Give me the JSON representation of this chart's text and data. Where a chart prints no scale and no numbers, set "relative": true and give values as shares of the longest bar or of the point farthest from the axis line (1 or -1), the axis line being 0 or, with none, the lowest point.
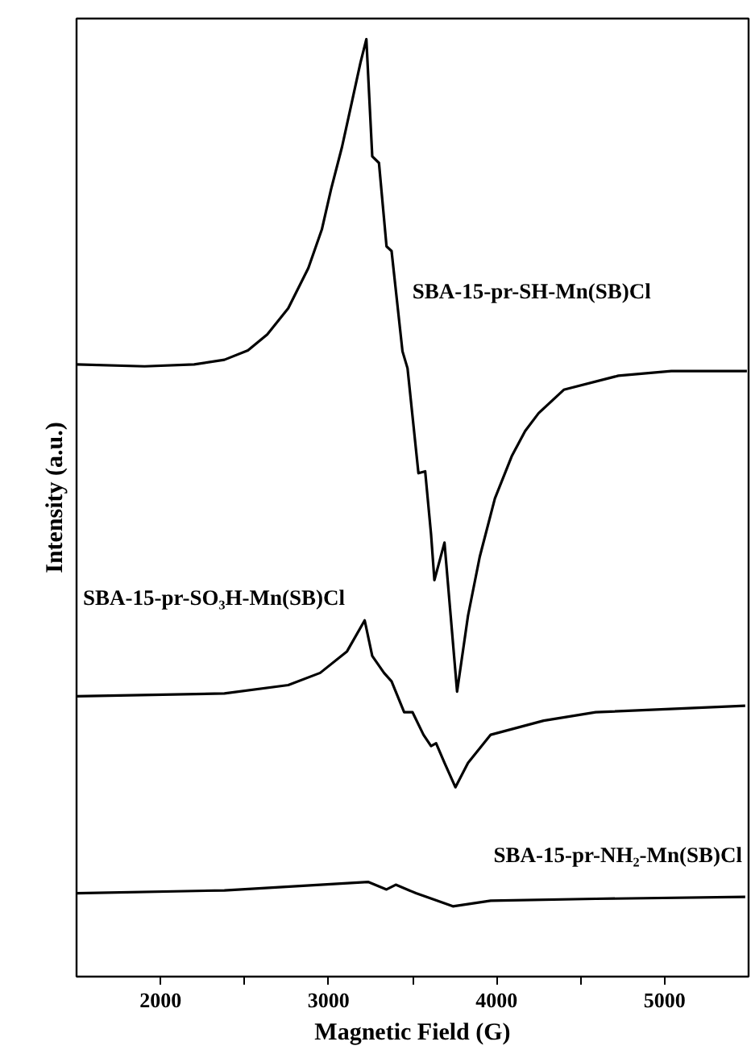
{
  "chart_data": {
    "type": "line",
    "xlabel": "Magnetic Field (G)",
    "ylabel": "Intensity (a.u.)",
    "relative": true,
    "xlim": [
      1500,
      5500
    ],
    "xticks": [
      2000,
      {
        "value": 2500,
        "label": null
      },
      3000,
      {
        "value": 3500,
        "label": null
      },
      4000,
      {
        "value": 4500,
        "label": null
      },
      5000
    ],
    "tick_labels": "x",
    "grid": false,
    "marker": "none",
    "line_style": "solid",
    "series": [
      {
        "name": "SBA-15-pr-SH-Mn(SB)Cl",
        "color": "#000000",
        "x": [
          1500,
          1905,
          2200,
          2380,
          2520,
          2635,
          2760,
          2880,
          2960,
          3015,
          3080,
          3140,
          3190,
          3225,
          3260,
          3300,
          3345,
          3375,
          3440,
          3470,
          3535,
          3575,
          3610,
          3630,
          3690,
          3765,
          3830,
          3900,
          3990,
          4090,
          4170,
          4250,
          4400,
          4725,
          5040,
          5490
        ],
        "values": [
          0.653,
          0.651,
          0.653,
          0.658,
          0.668,
          0.685,
          0.713,
          0.756,
          0.797,
          0.84,
          0.885,
          0.934,
          0.975,
          1.0,
          0.875,
          0.868,
          0.779,
          0.774,
          0.667,
          0.649,
          0.537,
          0.539,
          0.472,
          0.423,
          0.463,
          0.304,
          0.385,
          0.448,
          0.51,
          0.555,
          0.582,
          0.601,
          0.626,
          0.641,
          0.646,
          0.646
        ]
      },
      {
        "name": "SBA-15-pr-SO₃H-Mn(SB)Cl",
        "color": "#000000",
        "x": [
          1500,
          2380,
          2760,
          2950,
          3110,
          3215,
          3260,
          3330,
          3375,
          3450,
          3500,
          3565,
          3610,
          3640,
          3690,
          3755,
          3830,
          3965,
          4280,
          4590,
          5480
        ],
        "values": [
          0.299,
          0.302,
          0.311,
          0.324,
          0.347,
          0.38,
          0.342,
          0.324,
          0.315,
          0.282,
          0.282,
          0.258,
          0.246,
          0.249,
          0.228,
          0.202,
          0.228,
          0.258,
          0.273,
          0.282,
          0.289
        ]
      },
      {
        "name": "SBA-15-pr-NH₂-Mn(SB)Cl",
        "color": "#000000",
        "x": [
          1500,
          2380,
          2950,
          3235,
          3345,
          3400,
          3520,
          3615,
          3740,
          3965,
          4590,
          5480
        ],
        "values": [
          0.089,
          0.092,
          0.098,
          0.101,
          0.093,
          0.098,
          0.089,
          0.083,
          0.075,
          0.081,
          0.083,
          0.085
        ]
      }
    ]
  }
}
